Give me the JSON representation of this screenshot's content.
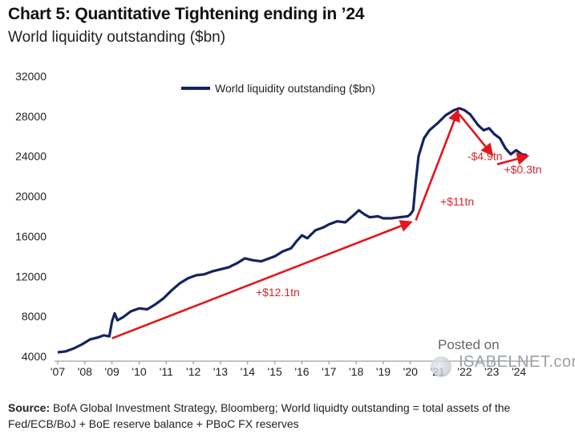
{
  "title": "Chart 5: Quantitative Tightening ending in ’24",
  "subtitle": "World liquidity outstanding ($bn)",
  "source_label": "Source:",
  "source_text": " BofA Global Investment Strategy, Bloomberg; World liquidty outstanding = total assets of the Fed/ECB/BoJ + BoE reserve balance + PBoC FX reserves",
  "watermark": {
    "line1": "Posted on",
    "line2": "ISABELNET.com"
  },
  "colors": {
    "series": "#14245e",
    "arrow": "#e3161c",
    "annotation": "#d8262b"
  },
  "chart_data": {
    "type": "line",
    "series": [
      {
        "name": "World liquidity outstanding ($bn)",
        "x": [
          2007.0,
          2007.3,
          2007.6,
          2007.9,
          2008.2,
          2008.5,
          2008.7,
          2008.9,
          2009.0,
          2009.1,
          2009.2,
          2009.4,
          2009.7,
          2010.0,
          2010.3,
          2010.6,
          2010.9,
          2011.2,
          2011.5,
          2011.8,
          2012.1,
          2012.4,
          2012.7,
          2013.0,
          2013.3,
          2013.6,
          2013.9,
          2014.2,
          2014.5,
          2014.8,
          2015.0,
          2015.3,
          2015.6,
          2015.8,
          2016.0,
          2016.2,
          2016.5,
          2016.8,
          2017.0,
          2017.3,
          2017.6,
          2017.9,
          2018.1,
          2018.3,
          2018.5,
          2018.8,
          2019.0,
          2019.3,
          2019.6,
          2019.9,
          2020.0,
          2020.1,
          2020.2,
          2020.3,
          2020.5,
          2020.7,
          2021.0,
          2021.3,
          2021.6,
          2021.8,
          2022.0,
          2022.2,
          2022.5,
          2022.7,
          2022.9,
          2023.1,
          2023.3,
          2023.5,
          2023.7,
          2023.9,
          2024.1,
          2024.3
        ],
        "y": [
          4400,
          4500,
          4800,
          5200,
          5700,
          5900,
          6100,
          6000,
          7500,
          8300,
          7600,
          7900,
          8500,
          8800,
          8700,
          9200,
          9800,
          10600,
          11300,
          11800,
          12100,
          12200,
          12500,
          12700,
          12900,
          13300,
          13800,
          13600,
          13500,
          13800,
          14000,
          14500,
          14800,
          15500,
          16100,
          15800,
          16600,
          16900,
          17200,
          17500,
          17400,
          18100,
          18600,
          18200,
          17900,
          18000,
          17800,
          17800,
          17900,
          18000,
          18200,
          18600,
          21500,
          24000,
          25800,
          26600,
          27300,
          28100,
          28600,
          28800,
          28600,
          28200,
          27100,
          26600,
          26800,
          26200,
          25800,
          24800,
          24200,
          24600,
          24200,
          24100
        ]
      }
    ],
    "title": "Chart 5: Quantitative Tightening ending in ’24",
    "ylabel": "World liquidity outstanding ($bn)",
    "ylim": [
      4000,
      32000
    ],
    "yticks": [
      "4000",
      "8000",
      "12000",
      "16000",
      "20000",
      "24000",
      "28000",
      "32000"
    ],
    "xtick_values": [
      2007,
      2008,
      2009,
      2010,
      2011,
      2012,
      2013,
      2014,
      2015,
      2016,
      2017,
      2018,
      2019,
      2020,
      2021,
      2022,
      2023,
      2024
    ],
    "xtick_labels": [
      "'07",
      "'08",
      "'09",
      "'10",
      "'11",
      "'12",
      "'13",
      "'14",
      "'15",
      "'16",
      "'17",
      "'18",
      "'19",
      "'20",
      "'21",
      "'22",
      "'23",
      "'24"
    ],
    "xlim": [
      2007,
      2024.5
    ],
    "legend": "top-left",
    "annotations": [
      {
        "label": "+$12.1tn",
        "from": [
          2009.0,
          5800
        ],
        "to": [
          2020.0,
          17400
        ],
        "label_at": [
          2014.3,
          10000
        ]
      },
      {
        "label": "+$11tn",
        "from": [
          2020.2,
          17600
        ],
        "to": [
          2021.75,
          28500
        ],
        "label_at": [
          2021.1,
          19100
        ]
      },
      {
        "label": "-$4.9tn",
        "from": [
          2021.8,
          28200
        ],
        "to": [
          2023.0,
          24200
        ],
        "label_at": [
          2022.1,
          23600
        ]
      },
      {
        "label": "+$0.3tn",
        "from": [
          2023.2,
          23200
        ],
        "to": [
          2024.3,
          24000
        ],
        "label_at": [
          2023.45,
          22300
        ]
      }
    ]
  }
}
